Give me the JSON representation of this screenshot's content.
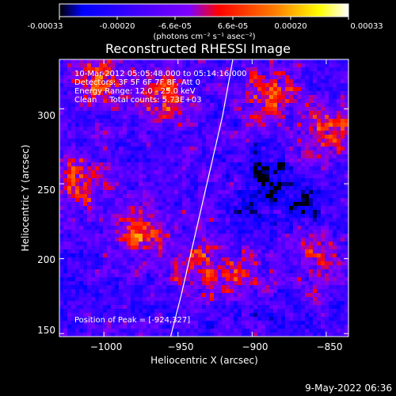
{
  "colorbar": {
    "ticks": [
      "-0.00033",
      "-0.00020",
      "-6.6e-05",
      "6.6e-05",
      "0.00020",
      "0.00033"
    ],
    "units": "(photons cm⁻² s⁻¹ asec⁻²)",
    "range": [
      -0.00033,
      0.00033
    ],
    "colormap": [
      "#000000",
      "#0000ff",
      "#7f00ff",
      "#ff0000",
      "#ff8000",
      "#ffff00",
      "#ffffff"
    ]
  },
  "chart_data": {
    "type": "heatmap",
    "title": "Reconstructed RHESSI Image",
    "xlabel": "Heliocentric X (arcsec)",
    "ylabel": "Heliocentric Y (arcsec)",
    "xlim": [
      -1030,
      -835
    ],
    "ylim": [
      148,
      333
    ],
    "xticks": [
      -1000,
      -950,
      -900,
      -850
    ],
    "xtick_labels": [
      "−1000",
      "−950",
      "−900",
      "−850"
    ],
    "yticks": [
      150,
      200,
      250,
      300
    ],
    "ytick_labels": [
      "150",
      "200",
      "250",
      "300"
    ],
    "limb_curve": [
      [
        -955,
        148
      ],
      [
        -948,
        175
      ],
      [
        -941,
        205
      ],
      [
        -934,
        235
      ],
      [
        -927,
        265
      ],
      [
        -920,
        295
      ],
      [
        -913,
        333
      ]
    ],
    "peak": [
      -924,
      327
    ],
    "annotations": {
      "time": "10-Mar-2012 05:05:48.000 to 05:14:16.000",
      "detectors": "Detectors: 3F 5F 6F 7F 8F, Att 0",
      "energy": "Energy Range: 12.0 - 25.0 keV",
      "method": "Clean     Total counts: 5.73E+03",
      "peak_label": "Position of Peak = [-924,327]"
    }
  },
  "footer": {
    "timestamp": "9-May-2022 06:36"
  }
}
